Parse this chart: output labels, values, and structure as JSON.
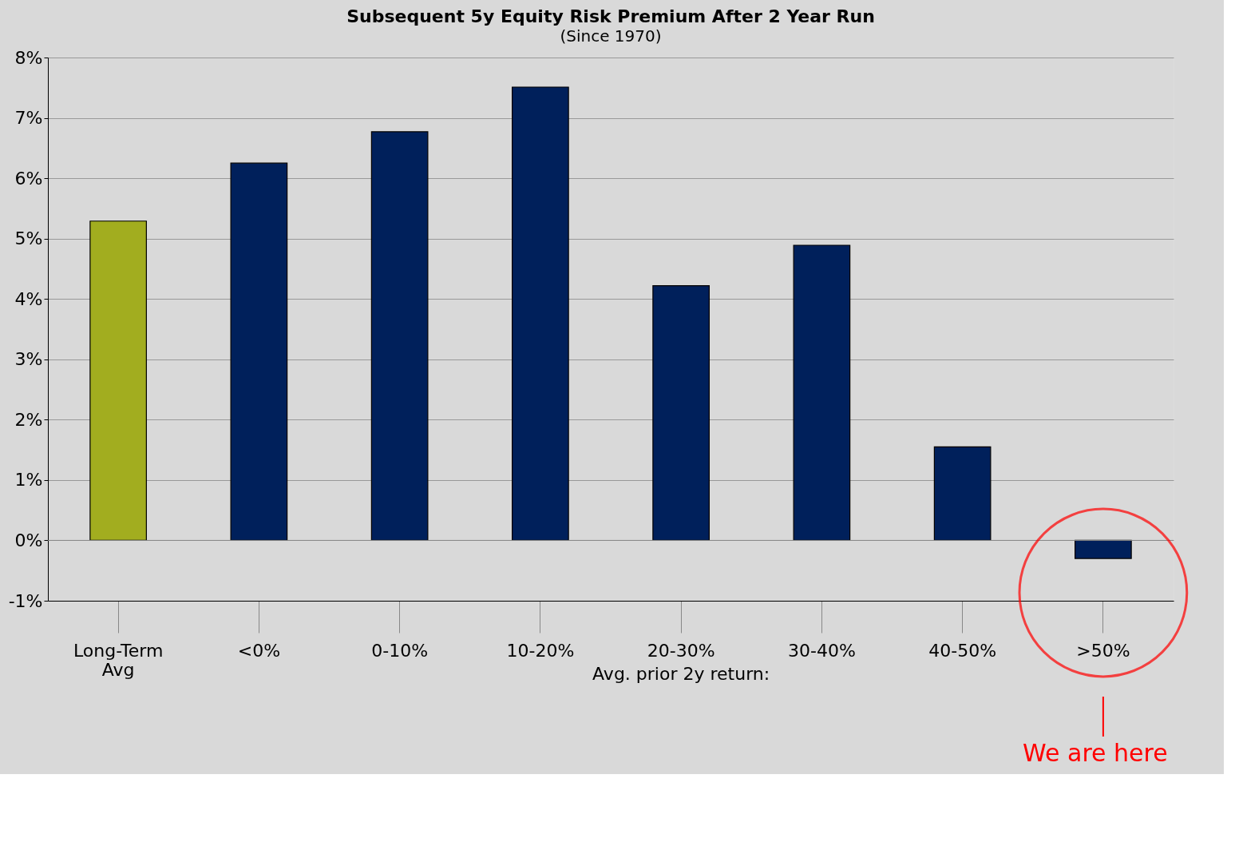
{
  "chart_data": {
    "type": "bar",
    "title": "Subsequent 5y Equity Risk Premium After 2 Year Run",
    "subtitle": "(Since 1970)",
    "xlabel": "Avg. prior 2y return:",
    "categories": [
      "Long-Term Avg",
      "<0%",
      "0-10%",
      "10-20%",
      "20-30%",
      "30-40%",
      "40-50%",
      ">50%"
    ],
    "values": [
      5.29,
      6.25,
      6.77,
      7.51,
      4.22,
      4.89,
      1.55,
      -0.3
    ],
    "colors": [
      "#a2ad1f",
      "#00205b",
      "#00205b",
      "#00205b",
      "#00205b",
      "#00205b",
      "#00205b",
      "#00205b"
    ],
    "ylim": [
      -1,
      8
    ],
    "yticks": [
      {
        "value": -1,
        "label": "-1%"
      },
      {
        "value": 0,
        "label": "0%"
      },
      {
        "value": 1,
        "label": "1%"
      },
      {
        "value": 2,
        "label": "2%"
      },
      {
        "value": 3,
        "label": "3%"
      },
      {
        "value": 4,
        "label": "4%"
      },
      {
        "value": 5,
        "label": "5%"
      },
      {
        "value": 6,
        "label": "6%"
      },
      {
        "value": 7,
        "label": "7%"
      },
      {
        "value": 8,
        "label": "8%"
      }
    ],
    "grid": "y",
    "annotations": [
      {
        "text": "We are here",
        "x": ">50%"
      }
    ]
  }
}
